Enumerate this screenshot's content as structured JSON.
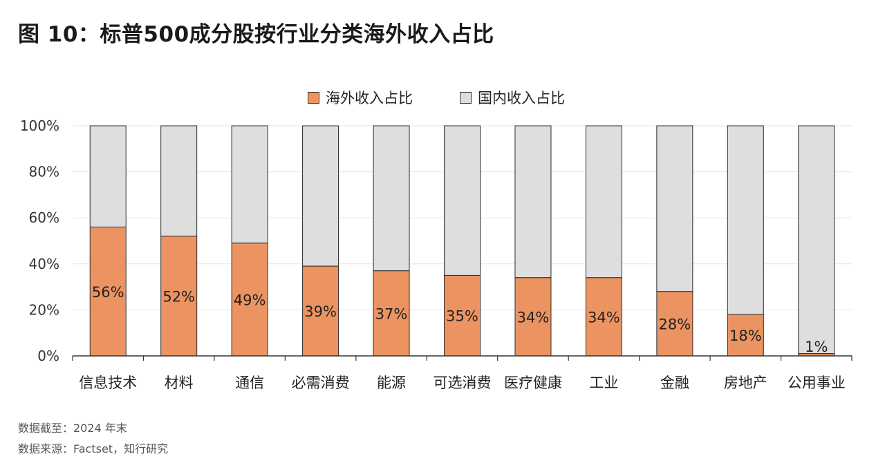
{
  "title": "图 10：标普500成分股按行业分类海外收入占比",
  "footnotes": {
    "date": "数据截至：2024 年末",
    "source": "数据来源：Factset，知行研究"
  },
  "colors": {
    "overseas": "#ec9461",
    "domestic": "#dedede",
    "outline": "#2b2b2b",
    "grid": "#e6e6e6"
  },
  "chart_data": {
    "type": "bar",
    "stacked": true,
    "categories": [
      "信息技术",
      "材料",
      "通信",
      "必需消费",
      "能源",
      "可选消费",
      "医疗健康",
      "工业",
      "金融",
      "房地产",
      "公用事业"
    ],
    "series": [
      {
        "name": "海外收入占比",
        "values": [
          56,
          52,
          49,
          39,
          37,
          35,
          34,
          34,
          28,
          18,
          1
        ],
        "labels": [
          "56%",
          "52%",
          "49%",
          "39%",
          "37%",
          "35%",
          "34%",
          "34%",
          "28%",
          "18%",
          "1%"
        ]
      },
      {
        "name": "国内收入占比",
        "values": [
          44,
          48,
          51,
          61,
          63,
          65,
          66,
          66,
          72,
          82,
          99
        ]
      }
    ],
    "ylim": [
      0,
      100
    ],
    "yticks": [
      "0%",
      "20%",
      "40%",
      "60%",
      "80%",
      "100%"
    ],
    "legend_position": "top-center",
    "grid": true
  }
}
